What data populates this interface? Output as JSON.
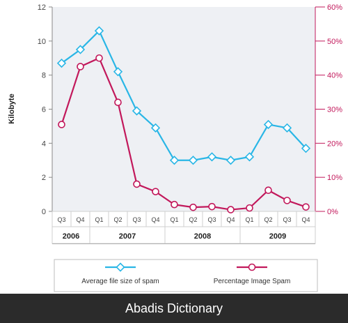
{
  "chart_data": {
    "type": "line",
    "ylabel": "Kilobyte",
    "ylim": [
      0,
      12
    ],
    "yticks": [
      "0",
      "2",
      "4",
      "6",
      "8",
      "10",
      "12"
    ],
    "y2lim": [
      0,
      60
    ],
    "y2ticks": [
      "0%",
      "10%",
      "20%",
      "30%",
      "40%",
      "50%",
      "60%"
    ],
    "categories": [
      "Q3",
      "Q4",
      "Q1",
      "Q2",
      "Q3",
      "Q4",
      "Q1",
      "Q2",
      "Q3",
      "Q4",
      "Q1",
      "Q2",
      "Q3",
      "Q4"
    ],
    "years": [
      {
        "label": "2006",
        "start": 0,
        "end": 1
      },
      {
        "label": "2007",
        "start": 2,
        "end": 5
      },
      {
        "label": "2008",
        "start": 6,
        "end": 9
      },
      {
        "label": "2009",
        "start": 10,
        "end": 13
      }
    ],
    "series": [
      {
        "name": "Average file size of spam",
        "axis": "left",
        "color": "#29b6e6",
        "values": [
          8.7,
          9.5,
          10.6,
          8.2,
          5.9,
          4.9,
          3.0,
          3.0,
          3.2,
          3.0,
          3.2,
          5.1,
          4.9,
          3.7
        ]
      },
      {
        "name": "Percentage Image Spam",
        "axis": "right",
        "color": "#c2185b",
        "values": [
          25.5,
          42.5,
          45,
          32,
          8,
          5.8,
          2,
          1.2,
          1.4,
          0.5,
          1,
          6.2,
          3.2,
          1.3
        ]
      }
    ],
    "legend_position": "bottom",
    "grid": false
  },
  "footer": {
    "text": "Abadis Dictionary"
  }
}
